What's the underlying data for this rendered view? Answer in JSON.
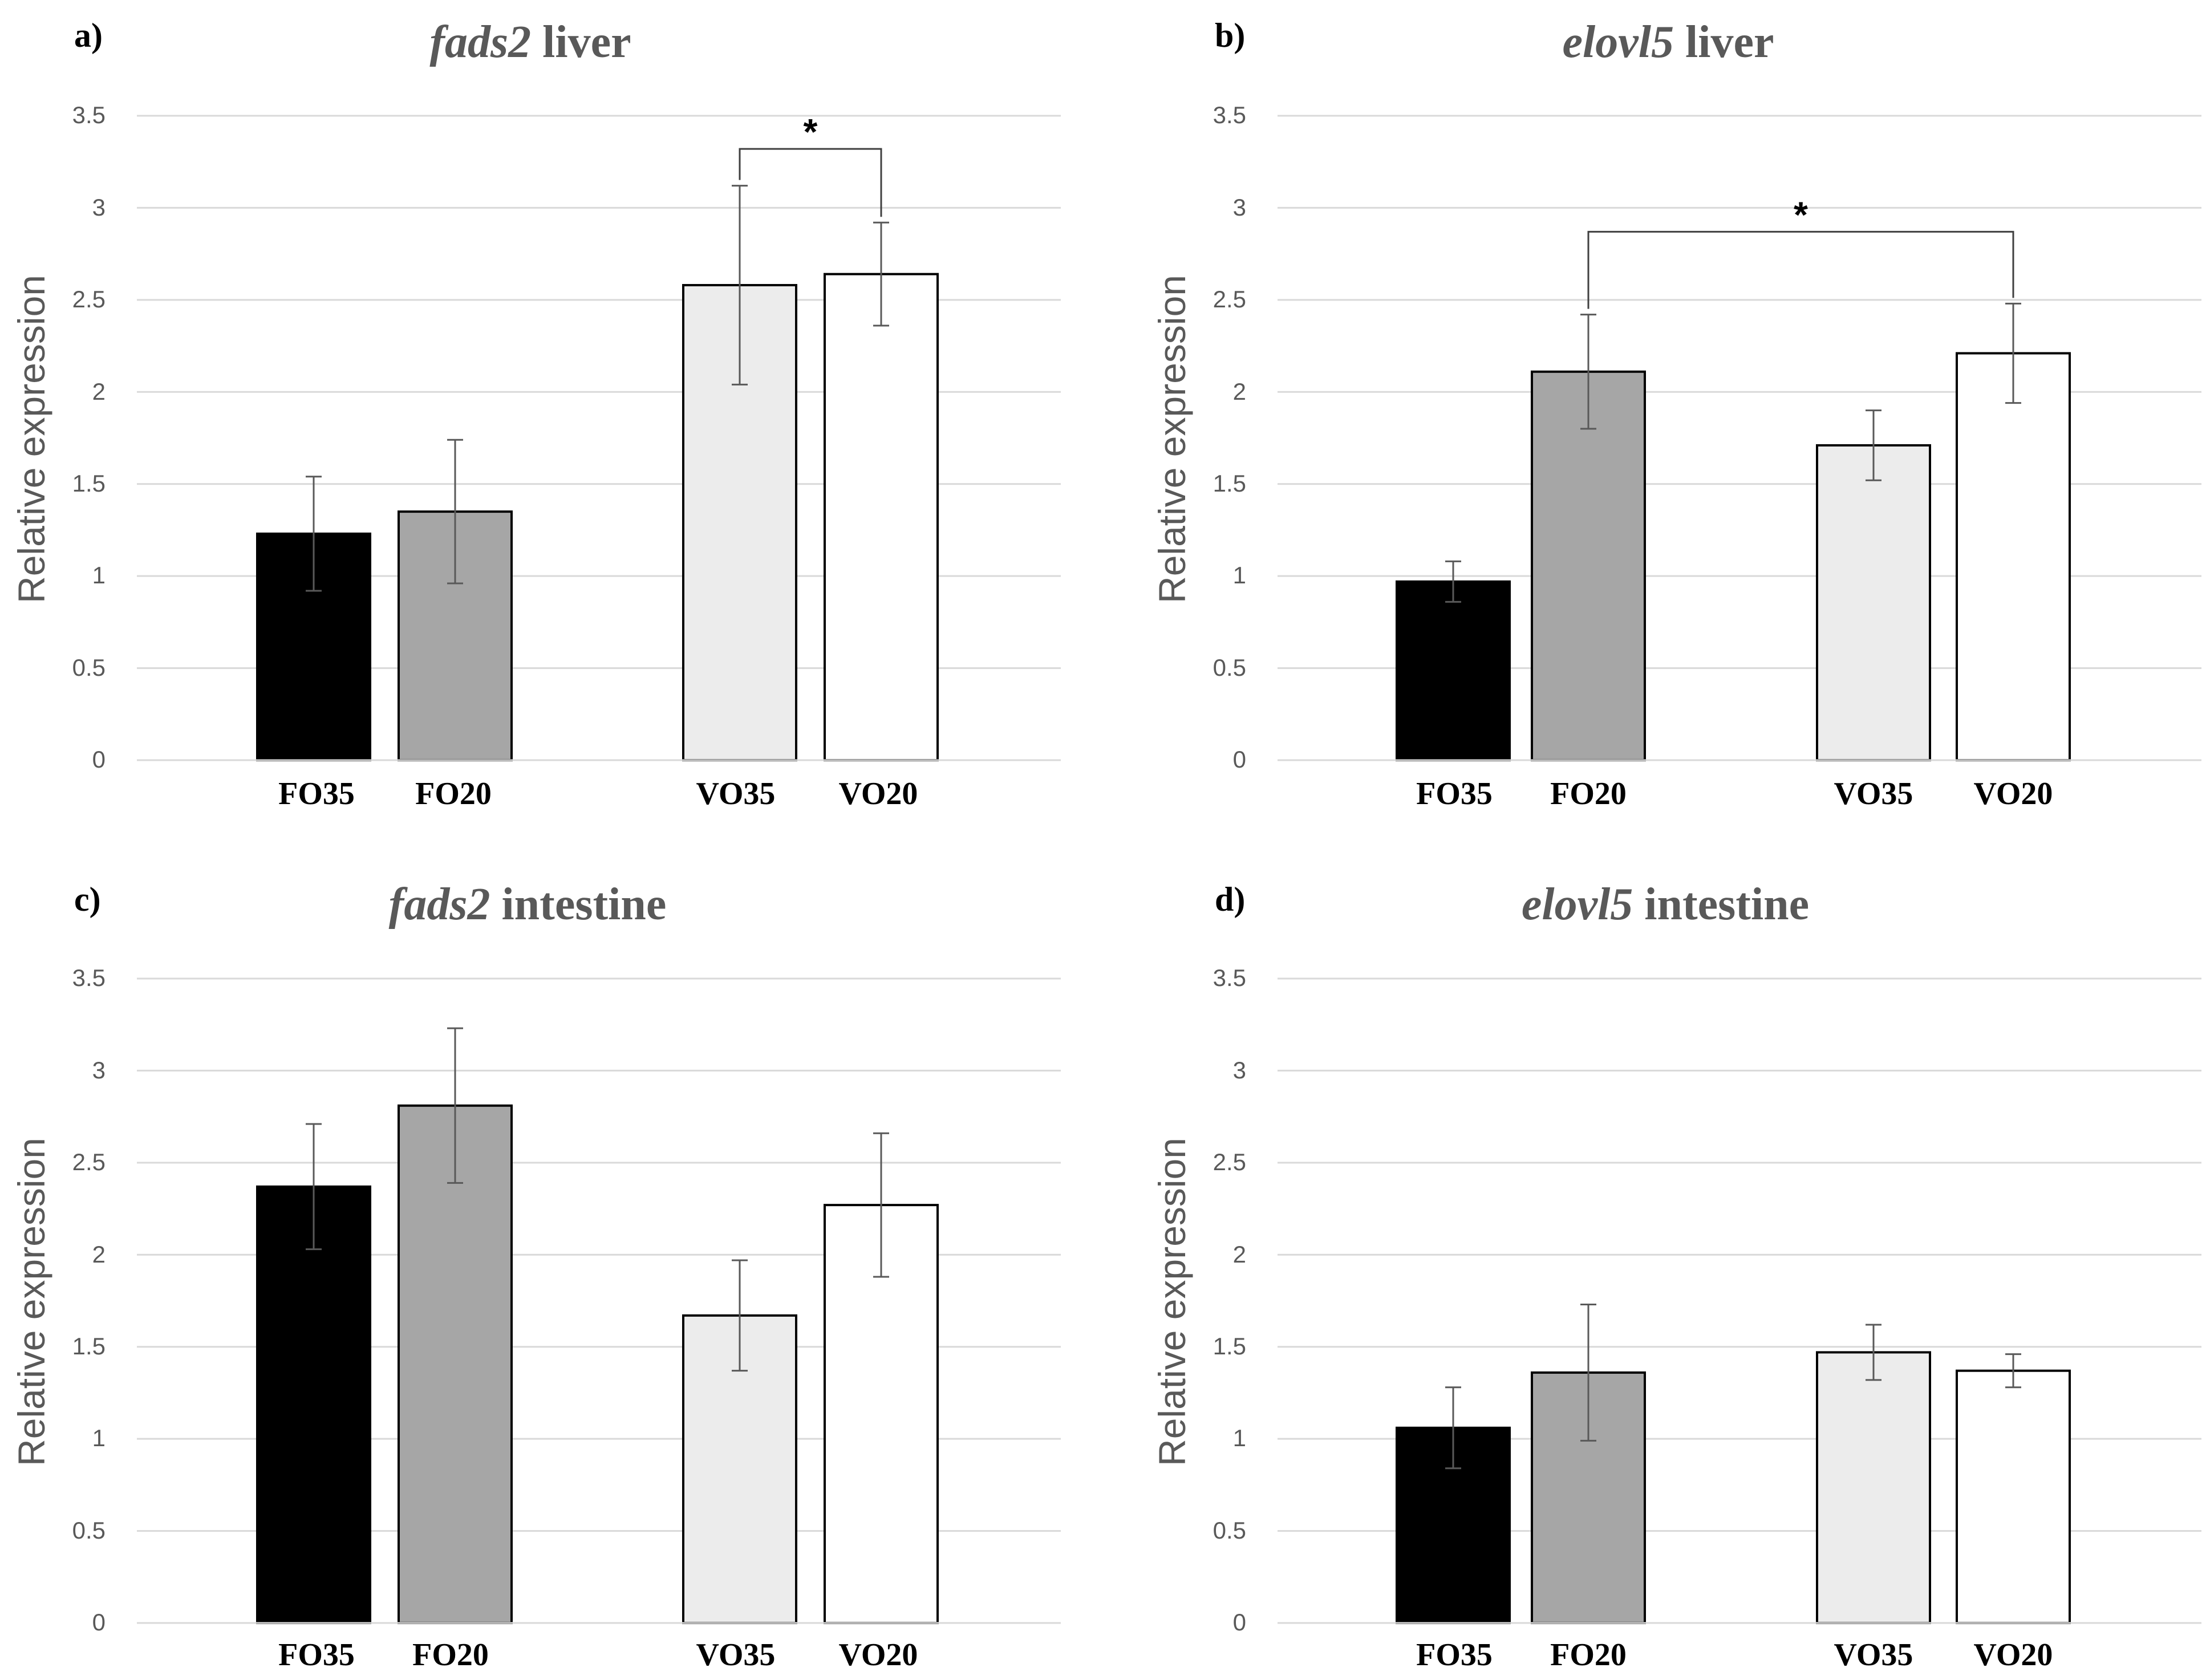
{
  "chart_data": [
    {
      "panel": "a)",
      "gene": "fads2",
      "tissue": "liver",
      "type": "bar",
      "ylabel": "Relative expression",
      "ylim": [
        0,
        3.5
      ],
      "yticks": [
        "0",
        "0.5",
        "1",
        "1.5",
        "2",
        "2.5",
        "3",
        "3.5"
      ],
      "categories": [
        "FO35",
        "FO20",
        "VO35",
        "VO20"
      ],
      "values": [
        1.23,
        1.35,
        2.58,
        2.64
      ],
      "errors": [
        0.31,
        0.39,
        0.54,
        0.28
      ],
      "colors": [
        "#000000",
        "#a6a6a6",
        "#ececec",
        "#ffffff"
      ],
      "significance": [
        {
          "from": 2,
          "to": 3,
          "label": "*",
          "level": 3.32
        }
      ]
    },
    {
      "panel": "b)",
      "gene": "elovl5",
      "tissue": "liver",
      "type": "bar",
      "ylabel": "Relative expression",
      "ylim": [
        0,
        3.5
      ],
      "yticks": [
        "0",
        "0.5",
        "1",
        "1.5",
        "2",
        "2.5",
        "3",
        "3.5"
      ],
      "categories": [
        "FO35",
        "FO20",
        "VO35",
        "VO20"
      ],
      "values": [
        0.97,
        2.11,
        1.71,
        2.21
      ],
      "errors": [
        0.11,
        0.31,
        0.19,
        0.27
      ],
      "colors": [
        "#000000",
        "#a6a6a6",
        "#ececec",
        "#ffffff"
      ],
      "significance": [
        {
          "from": 1,
          "to": 3,
          "label": "*",
          "level": 2.87
        }
      ]
    },
    {
      "panel": "c)",
      "gene": "fads2",
      "tissue": "intestine",
      "type": "bar",
      "ylabel": "Relative expression",
      "ylim": [
        0,
        3.5
      ],
      "yticks": [
        "0",
        "0.5",
        "1",
        "1.5",
        "2",
        "2.5",
        "3",
        "3.5"
      ],
      "categories": [
        "FO35",
        "FO20",
        "VO35",
        "VO20"
      ],
      "values": [
        2.37,
        2.81,
        1.67,
        2.27
      ],
      "errors": [
        0.34,
        0.42,
        0.3,
        0.39
      ],
      "colors": [
        "#000000",
        "#a6a6a6",
        "#ececec",
        "#ffffff"
      ],
      "significance": []
    },
    {
      "panel": "d)",
      "gene": "elovl5",
      "tissue": "intestine",
      "type": "bar",
      "ylabel": "Relative expression",
      "ylim": [
        0,
        3.5
      ],
      "yticks": [
        "0",
        "0.5",
        "1",
        "1.5",
        "2",
        "2.5",
        "3",
        "3.5"
      ],
      "categories": [
        "FO35",
        "FO20",
        "VO35",
        "VO20"
      ],
      "values": [
        1.06,
        1.36,
        1.47,
        1.37
      ],
      "errors": [
        0.22,
        0.37,
        0.15,
        0.09
      ],
      "colors": [
        "#000000",
        "#a6a6a6",
        "#ececec",
        "#ffffff"
      ],
      "significance": []
    }
  ]
}
